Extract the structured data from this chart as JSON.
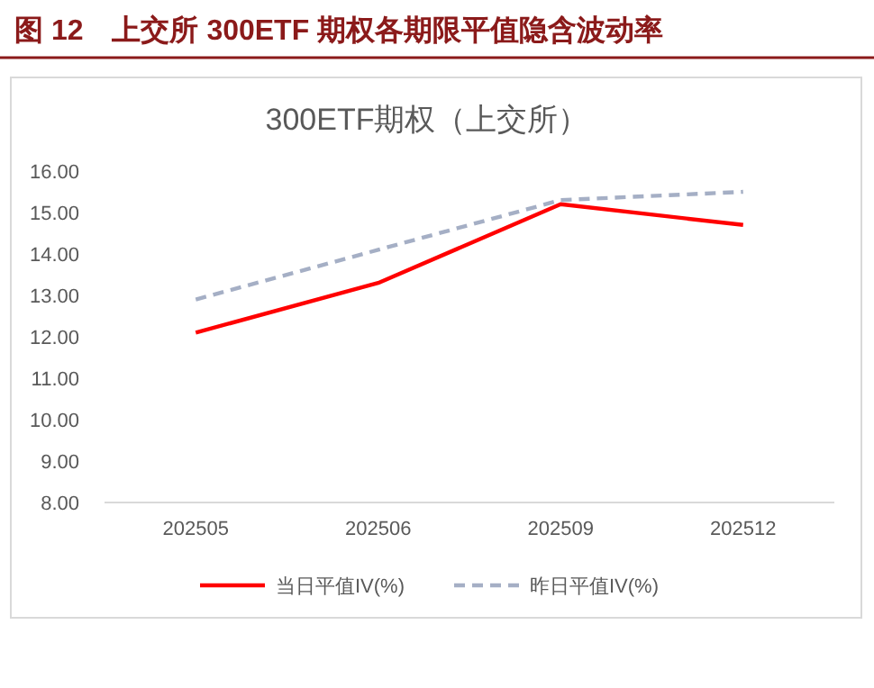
{
  "chart_data": {
    "type": "line",
    "title": "图 12　上交所 300ETF 期权各期限平值隐含波动率",
    "subtitle": "300ETF期权（上交所）",
    "categories": [
      "202505",
      "202506",
      "202509",
      "202512"
    ],
    "series": [
      {
        "name": "当日平值IV(%)",
        "color": "#ff0000",
        "line_style": "solid",
        "values": [
          12.1,
          13.3,
          15.2,
          14.7
        ]
      },
      {
        "name": "昨日平值IV(%)",
        "color": "#a5afc5",
        "line_style": "dashed",
        "values": [
          12.9,
          14.1,
          15.3,
          15.5
        ]
      }
    ],
    "ylim": [
      8,
      16
    ],
    "yticks": [
      {
        "value": 8,
        "label": "8.00"
      },
      {
        "value": 9,
        "label": "9.00"
      },
      {
        "value": 10,
        "label": "10.00"
      },
      {
        "value": 11,
        "label": "11.00"
      },
      {
        "value": 12,
        "label": "12.00"
      },
      {
        "value": 13,
        "label": "13.00"
      },
      {
        "value": 14,
        "label": "14.00"
      },
      {
        "value": 15,
        "label": "15.00"
      },
      {
        "value": 16,
        "label": "16.00"
      }
    ],
    "legend": "bottom"
  }
}
